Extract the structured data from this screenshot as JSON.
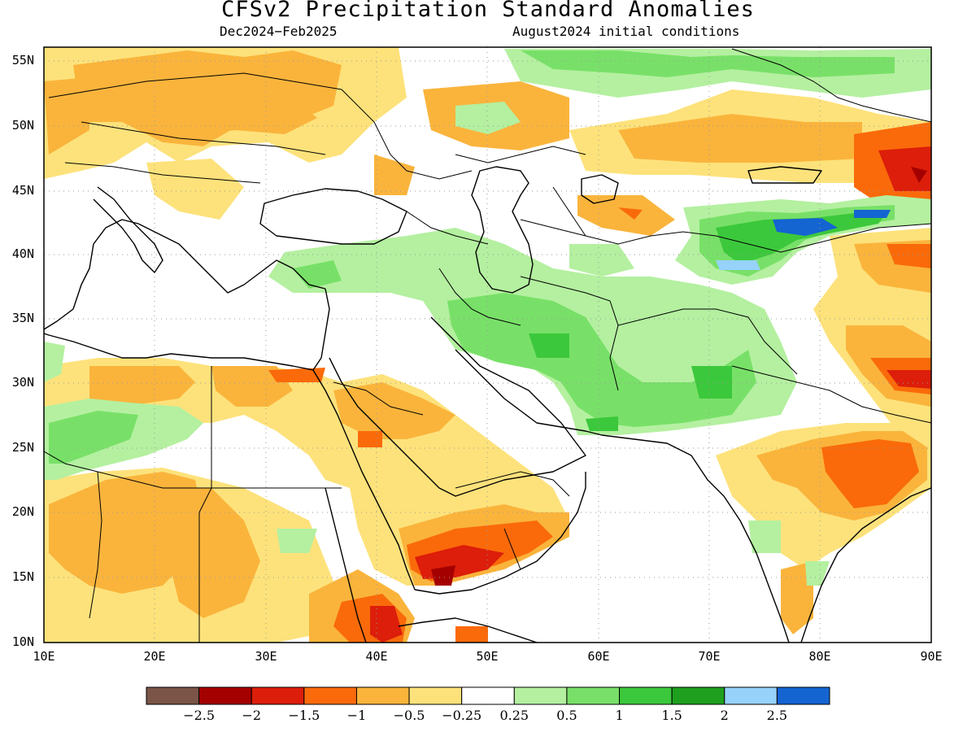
{
  "title": "CFSv2 Precipitation Standard Anomalies",
  "period": "Dec2024−Feb2025",
  "init": "August2024 initial conditions",
  "lat_labels": [
    "55N",
    "50N",
    "45N",
    "40N",
    "35N",
    "30N",
    "25N",
    "20N",
    "15N",
    "10N"
  ],
  "lon_labels": [
    "10E",
    "20E",
    "30E",
    "40E",
    "50E",
    "60E",
    "70E",
    "80E",
    "90E"
  ],
  "colorbar": {
    "colors": [
      "#7a5548",
      "#a50000",
      "#dc1e0a",
      "#fa6a0a",
      "#fab43c",
      "#fde27b",
      "#ffffff",
      "#b4f0a0",
      "#78e068",
      "#3cc83c",
      "#1ea01e",
      "#96d2fa",
      "#1464d2"
    ],
    "labels": [
      "−2.5",
      "−2",
      "−1.5",
      "−1",
      "−0.5",
      "−0.25",
      "0.25",
      "0.5",
      "1",
      "1.5",
      "2",
      "2.5"
    ]
  }
}
